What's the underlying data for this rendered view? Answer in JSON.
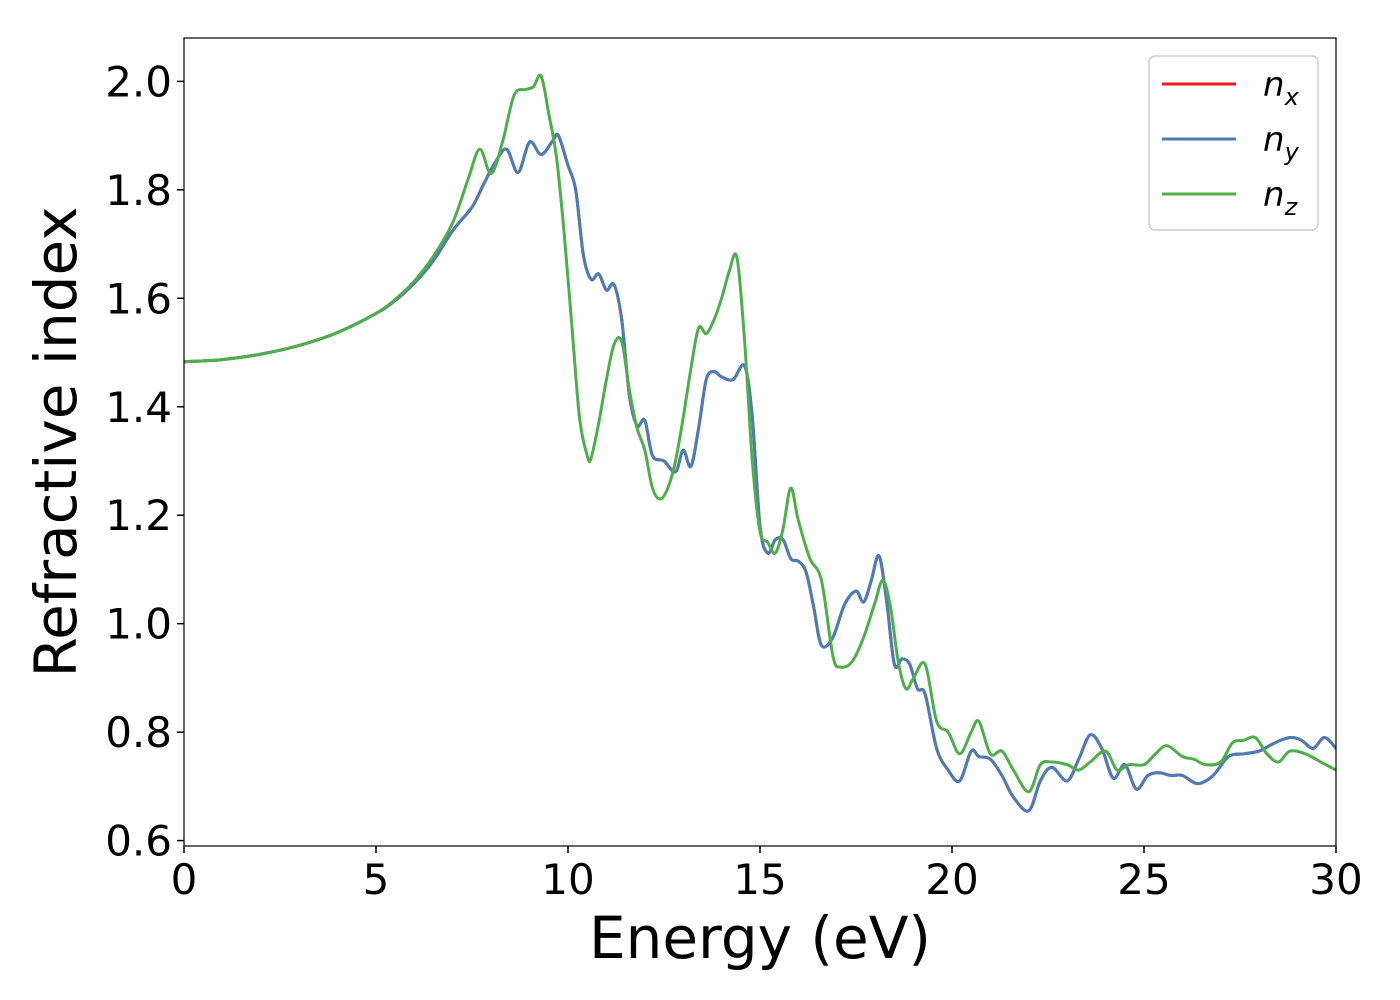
{
  "chart_data": {
    "type": "line",
    "title": "",
    "xlabel": "Energy (eV)",
    "ylabel": "Refractive index",
    "xlim": [
      0,
      30
    ],
    "ylim": [
      0.59,
      2.08
    ],
    "xticks": [
      "0",
      "5",
      "10",
      "15",
      "20",
      "25",
      "30"
    ],
    "yticks": [
      "0.6",
      "0.8",
      "1.0",
      "1.2",
      "1.4",
      "1.6",
      "1.8",
      "2.0"
    ],
    "grid": false,
    "legend_position": "top-right",
    "series": [
      {
        "name": "n",
        "subscript": "x",
        "color": "#e41a1c",
        "x": [
          0,
          1,
          2,
          3,
          4,
          5,
          5.5,
          6,
          6.5,
          7,
          7.5,
          7.8,
          8.1,
          8.4,
          8.7,
          9.0,
          9.3,
          9.6,
          9.75,
          10.0,
          10.2,
          10.4,
          10.6,
          10.8,
          11.0,
          11.2,
          11.4,
          11.6,
          11.8,
          12.0,
          12.2,
          12.5,
          12.8,
          13.0,
          13.2,
          13.4,
          13.6,
          13.8,
          14.0,
          14.3,
          14.6,
          14.8,
          15.0,
          15.2,
          15.4,
          15.6,
          15.8,
          16.0,
          16.2,
          16.4,
          16.6,
          16.9,
          17.2,
          17.5,
          17.7,
          17.9,
          18.1,
          18.3,
          18.5,
          18.7,
          18.9,
          19.1,
          19.3,
          19.6,
          19.9,
          20.2,
          20.5,
          20.7,
          21.0,
          21.3,
          21.6,
          22.0,
          22.3,
          22.6,
          23.0,
          23.3,
          23.6,
          23.9,
          24.2,
          24.5,
          24.8,
          25.1,
          25.4,
          25.7,
          26.0,
          26.4,
          26.8,
          27.2,
          27.6,
          28.0,
          28.4,
          28.8,
          29.1,
          29.4,
          29.7,
          30.0
        ],
        "values": [
          1.483,
          1.487,
          1.497,
          1.513,
          1.537,
          1.572,
          1.596,
          1.628,
          1.67,
          1.725,
          1.768,
          1.81,
          1.85,
          1.875,
          1.832,
          1.888,
          1.865,
          1.89,
          1.9,
          1.845,
          1.8,
          1.68,
          1.635,
          1.645,
          1.615,
          1.625,
          1.56,
          1.42,
          1.365,
          1.375,
          1.31,
          1.3,
          1.28,
          1.32,
          1.29,
          1.36,
          1.45,
          1.465,
          1.455,
          1.45,
          1.475,
          1.38,
          1.18,
          1.13,
          1.155,
          1.155,
          1.12,
          1.115,
          1.095,
          1.03,
          0.96,
          0.975,
          1.035,
          1.06,
          1.04,
          1.08,
          1.125,
          1.04,
          0.925,
          0.935,
          0.925,
          0.88,
          0.87,
          0.77,
          0.73,
          0.71,
          0.765,
          0.755,
          0.75,
          0.72,
          0.68,
          0.655,
          0.71,
          0.735,
          0.71,
          0.75,
          0.795,
          0.77,
          0.715,
          0.74,
          0.695,
          0.72,
          0.725,
          0.72,
          0.72,
          0.705,
          0.72,
          0.755,
          0.76,
          0.765,
          0.78,
          0.79,
          0.785,
          0.77,
          0.79,
          0.77
        ]
      },
      {
        "name": "n",
        "subscript": "y",
        "color": "#4a7db8",
        "x": [
          0,
          1,
          2,
          3,
          4,
          5,
          5.5,
          6,
          6.5,
          7,
          7.5,
          7.8,
          8.1,
          8.4,
          8.7,
          9.0,
          9.3,
          9.6,
          9.75,
          10.0,
          10.2,
          10.4,
          10.6,
          10.8,
          11.0,
          11.2,
          11.4,
          11.6,
          11.8,
          12.0,
          12.2,
          12.5,
          12.8,
          13.0,
          13.2,
          13.4,
          13.6,
          13.8,
          14.0,
          14.3,
          14.6,
          14.8,
          15.0,
          15.2,
          15.4,
          15.6,
          15.8,
          16.0,
          16.2,
          16.4,
          16.6,
          16.9,
          17.2,
          17.5,
          17.7,
          17.9,
          18.1,
          18.3,
          18.5,
          18.7,
          18.9,
          19.1,
          19.3,
          19.6,
          19.9,
          20.2,
          20.5,
          20.7,
          21.0,
          21.3,
          21.6,
          22.0,
          22.3,
          22.6,
          23.0,
          23.3,
          23.6,
          23.9,
          24.2,
          24.5,
          24.8,
          25.1,
          25.4,
          25.7,
          26.0,
          26.4,
          26.8,
          27.2,
          27.6,
          28.0,
          28.4,
          28.8,
          29.1,
          29.4,
          29.7,
          30.0
        ],
        "values": [
          1.483,
          1.487,
          1.497,
          1.513,
          1.537,
          1.572,
          1.596,
          1.628,
          1.67,
          1.725,
          1.768,
          1.81,
          1.85,
          1.875,
          1.832,
          1.888,
          1.865,
          1.89,
          1.9,
          1.845,
          1.8,
          1.68,
          1.635,
          1.645,
          1.615,
          1.625,
          1.56,
          1.42,
          1.365,
          1.375,
          1.31,
          1.3,
          1.28,
          1.32,
          1.29,
          1.36,
          1.45,
          1.465,
          1.455,
          1.45,
          1.475,
          1.38,
          1.18,
          1.13,
          1.155,
          1.155,
          1.12,
          1.115,
          1.095,
          1.03,
          0.96,
          0.975,
          1.035,
          1.06,
          1.04,
          1.08,
          1.125,
          1.04,
          0.925,
          0.935,
          0.925,
          0.88,
          0.87,
          0.77,
          0.73,
          0.71,
          0.765,
          0.755,
          0.75,
          0.72,
          0.68,
          0.655,
          0.71,
          0.735,
          0.71,
          0.75,
          0.795,
          0.77,
          0.715,
          0.74,
          0.695,
          0.72,
          0.725,
          0.72,
          0.72,
          0.705,
          0.72,
          0.755,
          0.76,
          0.765,
          0.78,
          0.79,
          0.785,
          0.77,
          0.79,
          0.77
        ]
      },
      {
        "name": "n",
        "subscript": "z",
        "color": "#4daf4a",
        "x": [
          0,
          1,
          2,
          3,
          4,
          5,
          5.5,
          6,
          6.5,
          7,
          7.4,
          7.7,
          8.0,
          8.3,
          8.6,
          8.9,
          9.1,
          9.3,
          9.5,
          9.7,
          9.9,
          10.1,
          10.3,
          10.5,
          10.6,
          10.8,
          11.0,
          11.2,
          11.4,
          11.6,
          11.8,
          12.0,
          12.2,
          12.4,
          12.6,
          12.8,
          13.0,
          13.2,
          13.4,
          13.6,
          13.8,
          14.0,
          14.2,
          14.4,
          14.6,
          14.8,
          15.0,
          15.2,
          15.4,
          15.6,
          15.8,
          16.0,
          16.3,
          16.6,
          16.9,
          17.1,
          17.4,
          17.7,
          18.0,
          18.2,
          18.4,
          18.6,
          18.8,
          19.0,
          19.3,
          19.6,
          19.9,
          20.2,
          20.5,
          20.7,
          21.0,
          21.3,
          21.6,
          22.0,
          22.3,
          22.6,
          23.0,
          23.3,
          23.6,
          24.0,
          24.3,
          24.6,
          25.0,
          25.3,
          25.6,
          26.0,
          26.3,
          26.6,
          27.0,
          27.3,
          27.6,
          27.9,
          28.2,
          28.5,
          28.8,
          29.2,
          29.6,
          30.0
        ],
        "values": [
          1.483,
          1.487,
          1.497,
          1.513,
          1.537,
          1.572,
          1.598,
          1.632,
          1.678,
          1.74,
          1.82,
          1.875,
          1.83,
          1.89,
          1.975,
          1.985,
          1.99,
          2.01,
          1.94,
          1.86,
          1.72,
          1.55,
          1.38,
          1.31,
          1.305,
          1.37,
          1.45,
          1.515,
          1.52,
          1.43,
          1.36,
          1.32,
          1.25,
          1.23,
          1.25,
          1.3,
          1.38,
          1.47,
          1.545,
          1.535,
          1.56,
          1.6,
          1.65,
          1.675,
          1.52,
          1.3,
          1.17,
          1.15,
          1.13,
          1.175,
          1.25,
          1.19,
          1.12,
          1.08,
          0.94,
          0.92,
          0.93,
          0.975,
          1.04,
          1.08,
          1.03,
          0.93,
          0.88,
          0.9,
          0.925,
          0.82,
          0.8,
          0.76,
          0.8,
          0.82,
          0.76,
          0.765,
          0.73,
          0.69,
          0.74,
          0.745,
          0.74,
          0.73,
          0.745,
          0.765,
          0.73,
          0.74,
          0.74,
          0.76,
          0.775,
          0.755,
          0.75,
          0.74,
          0.745,
          0.78,
          0.785,
          0.79,
          0.76,
          0.745,
          0.765,
          0.76,
          0.745,
          0.73
        ]
      }
    ]
  }
}
